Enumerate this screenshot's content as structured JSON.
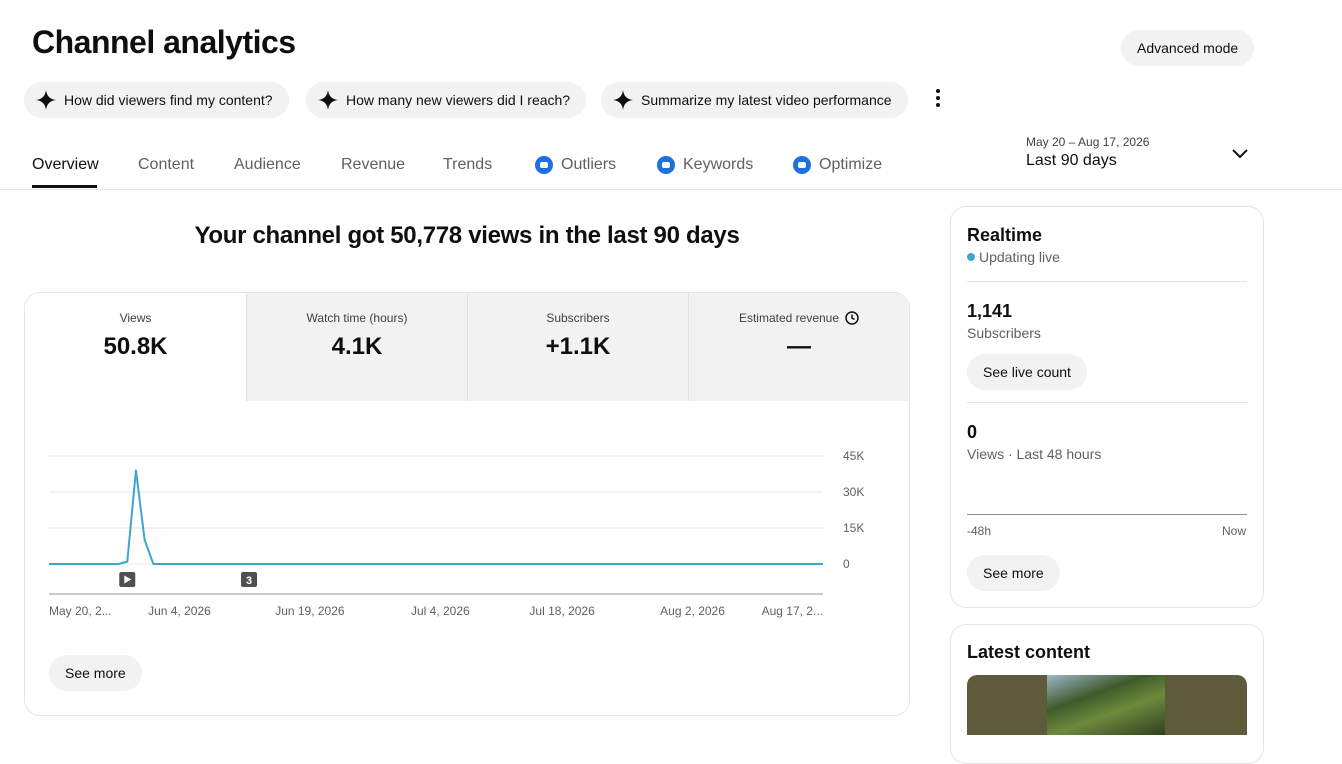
{
  "header": {
    "title": "Channel analytics",
    "advanced_mode": "Advanced mode"
  },
  "suggestions": [
    "How did viewers find my content?",
    "How many new viewers did I reach?",
    "Summarize my latest video performance"
  ],
  "tabs": [
    "Overview",
    "Content",
    "Audience",
    "Revenue",
    "Trends",
    "Outliers",
    "Keywords",
    "Optimize"
  ],
  "date_range": {
    "range": "May 20 – Aug 17, 2026",
    "label": "Last 90 days"
  },
  "summary": "Your channel got 50,778 views in the last 90 days",
  "metrics": [
    {
      "label": "Views",
      "value": "50.8K"
    },
    {
      "label": "Watch time (hours)",
      "value": "4.1K"
    },
    {
      "label": "Subscribers",
      "value": "+1.1K"
    },
    {
      "label": "Estimated revenue",
      "value": "—"
    }
  ],
  "chart_data": {
    "type": "line",
    "x": [
      "2026-05-20",
      "2026-05-28",
      "2026-05-29",
      "2026-05-30",
      "2026-05-31",
      "2026-06-01",
      "2026-08-17"
    ],
    "values": [
      0,
      0,
      1000,
      39000,
      10000,
      0,
      0
    ],
    "color": "#3ea6cc",
    "xlim": [
      "2026-05-20",
      "2026-08-17"
    ],
    "xticks": [
      {
        "value": "2026-05-20",
        "label": "May 20, 2..."
      },
      {
        "value": "2026-06-04",
        "label": "Jun 4, 2026"
      },
      {
        "value": "2026-06-19",
        "label": "Jun 19, 2026"
      },
      {
        "value": "2026-07-04",
        "label": "Jul 4, 2026"
      },
      {
        "value": "2026-07-18",
        "label": "Jul 18, 2026"
      },
      {
        "value": "2026-08-02",
        "label": "Aug 2, 2026"
      },
      {
        "value": "2026-08-17",
        "label": "Aug 17, 2..."
      }
    ],
    "ylim": [
      0,
      45000
    ],
    "yticks": [
      0,
      {
        "value": 15000,
        "label": "15K"
      },
      {
        "value": 30000,
        "label": "30K"
      },
      {
        "value": 45000,
        "label": "45K"
      }
    ],
    "grid": true,
    "annotations": [
      {
        "x": "2026-05-29"
      },
      {
        "x": "2026-06-12",
        "label": "3"
      }
    ]
  },
  "chart_button": "See more",
  "realtime": {
    "title": "Realtime",
    "status": "Updating live",
    "subscribers": "1,141",
    "subscribers_label": "Subscribers",
    "live_count_button": "See live count",
    "views": "0",
    "views_label": "Views · Last 48 hours",
    "axis_start": "-48h",
    "axis_end": "Now",
    "button": "See more"
  },
  "latest_content": {
    "title": "Latest content"
  }
}
